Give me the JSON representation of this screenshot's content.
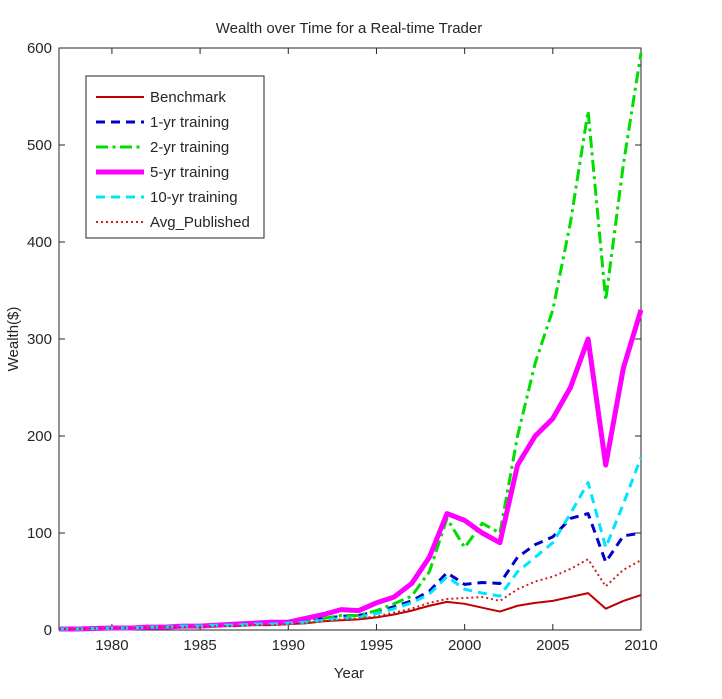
{
  "chart_data": {
    "type": "line",
    "title": "Wealth over Time for a Real-time Trader",
    "xlabel": "Year",
    "ylabel": "Wealth($)",
    "xlim": [
      1977,
      2010
    ],
    "ylim": [
      0,
      600
    ],
    "xticks": [
      1980,
      1985,
      1990,
      1995,
      2000,
      2005,
      2010
    ],
    "yticks": [
      0,
      100,
      200,
      300,
      400,
      500,
      600
    ],
    "grid": false,
    "legend_position": "top-left",
    "x": [
      1977,
      1978,
      1979,
      1980,
      1981,
      1982,
      1983,
      1984,
      1985,
      1986,
      1987,
      1988,
      1989,
      1990,
      1991,
      1992,
      1993,
      1994,
      1995,
      1996,
      1997,
      1998,
      1999,
      2000,
      2001,
      2002,
      2003,
      2004,
      2005,
      2006,
      2007,
      2008,
      2009,
      2010
    ],
    "series": [
      {
        "name": "Benchmark",
        "color": "#c00000",
        "style": "solid",
        "width": 2,
        "values": [
          1,
          1,
          1.5,
          2,
          2,
          2.5,
          3,
          3,
          3.5,
          4,
          4,
          5,
          5,
          6,
          7,
          9,
          10,
          11,
          13,
          16,
          20,
          25,
          29,
          27,
          23,
          19,
          25,
          28,
          30,
          34,
          38,
          22,
          30,
          36
        ]
      },
      {
        "name": "1-yr training",
        "color": "#0000cc",
        "style": "dashed",
        "width": 3,
        "values": [
          1,
          1,
          1.5,
          2,
          2,
          3,
          3,
          4,
          4,
          5,
          5,
          6,
          7,
          7,
          9,
          12,
          14,
          15,
          19,
          24,
          30,
          40,
          59,
          47,
          49,
          48,
          75,
          88,
          96,
          115,
          120,
          70,
          97,
          100
        ]
      },
      {
        "name": "2-yr training",
        "color": "#00dd00",
        "style": "dashdot",
        "width": 3,
        "values": [
          1,
          1,
          1.5,
          2,
          2,
          3,
          3,
          4,
          4,
          5,
          5,
          6,
          7,
          7,
          9,
          12,
          15,
          15,
          20,
          27,
          35,
          60,
          115,
          85,
          110,
          100,
          200,
          275,
          330,
          420,
          535,
          340,
          480,
          595
        ]
      },
      {
        "name": "5-yr training",
        "color": "#ff00ff",
        "style": "solid",
        "width": 5,
        "values": [
          1,
          1,
          1.5,
          2,
          2,
          3,
          3,
          4,
          4,
          5,
          6,
          7,
          8,
          8,
          12,
          16,
          21,
          20,
          28,
          34,
          48,
          75,
          120,
          113,
          100,
          90,
          170,
          200,
          218,
          250,
          300,
          170,
          270,
          330
        ]
      },
      {
        "name": "10-yr training",
        "color": "#00e5ff",
        "style": "dashed",
        "width": 3,
        "values": [
          1,
          1,
          1.5,
          2,
          2,
          3,
          3,
          4,
          4,
          5,
          5,
          6,
          6,
          7,
          8,
          10,
          12,
          13,
          17,
          22,
          28,
          37,
          55,
          42,
          38,
          35,
          60,
          75,
          90,
          120,
          152,
          85,
          130,
          178
        ]
      },
      {
        "name": "Avg_Published",
        "color": "#cc2222",
        "style": "dotted",
        "width": 2,
        "values": [
          1,
          1,
          1.5,
          2,
          2,
          2.5,
          3,
          3,
          3.5,
          4,
          4,
          5,
          5,
          6,
          7,
          9,
          11,
          12,
          14,
          18,
          22,
          28,
          32,
          33,
          34,
          30,
          42,
          50,
          55,
          63,
          73,
          45,
          62,
          72
        ]
      }
    ]
  }
}
